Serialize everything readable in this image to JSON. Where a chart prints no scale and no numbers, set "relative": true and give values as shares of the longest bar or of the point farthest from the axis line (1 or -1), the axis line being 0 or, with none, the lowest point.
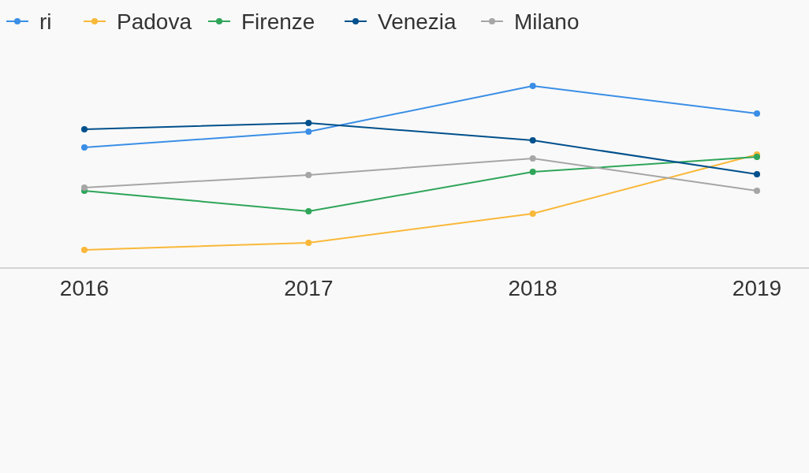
{
  "chart_data": {
    "type": "line",
    "relative": true,
    "categories": [
      "2016",
      "2017",
      "2018",
      "2019"
    ],
    "series": [
      {
        "name": "ri",
        "color": "#3a8ee6",
        "values": [
          0.662,
          0.749,
          1,
          0.848
        ]
      },
      {
        "name": "Padova",
        "color": "#f9b839",
        "values": [
          0.1,
          0.139,
          0.299,
          0.623
        ]
      },
      {
        "name": "Firenze",
        "color": "#2fa55a",
        "values": [
          0.424,
          0.312,
          0.528,
          0.61
        ]
      },
      {
        "name": "Venezia",
        "color": "#00508c",
        "values": [
          0.762,
          0.797,
          0.701,
          0.515
        ]
      },
      {
        "name": "Milano",
        "color": "#a6a6a6",
        "values": [
          0.442,
          0.511,
          0.602,
          0.424
        ]
      }
    ],
    "legend": "top",
    "marker": "circle",
    "line_style": "solid"
  }
}
